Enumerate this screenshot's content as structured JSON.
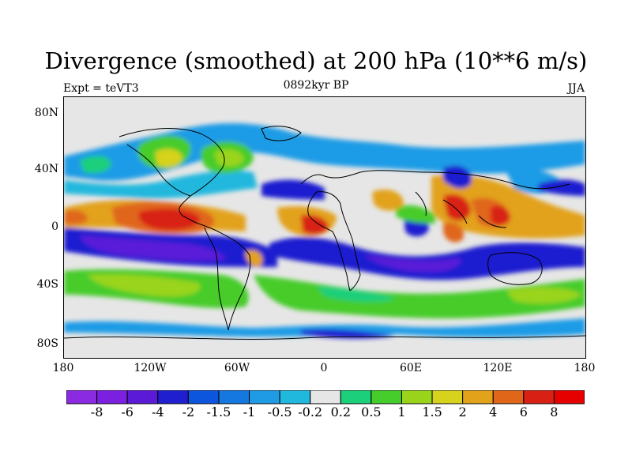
{
  "header": {
    "title": "Divergence (smoothed) at 200 hPa (10**6 m/s)",
    "subtitle": "0892kyr BP",
    "left_label": "Expt = teVT3",
    "right_label": "JJA"
  },
  "axes": {
    "lat_labels": [
      "80N",
      "40N",
      "0",
      "40S",
      "80S"
    ],
    "lon_labels": [
      "180",
      "120W",
      "60W",
      "0",
      "60E",
      "120E",
      "180"
    ]
  },
  "colorbar": {
    "labels": [
      "-8",
      "-6",
      "-4",
      "-2",
      "-1.5",
      "-1",
      "-0.5",
      "-0.2",
      "0.2",
      "0.5",
      "1",
      "1.5",
      "2",
      "4",
      "6",
      "8"
    ],
    "colors": [
      "#8a2be2",
      "#7b1fe0",
      "#5a1ad8",
      "#1f1fd0",
      "#0c55dd",
      "#1577e0",
      "#1f9be6",
      "#21b8de",
      "#e6e6e6",
      "#1ccf7a",
      "#46cc2b",
      "#9ad41a",
      "#d7d21b",
      "#e2a21a",
      "#e0661a",
      "#d82015",
      "#e60000"
    ]
  }
}
